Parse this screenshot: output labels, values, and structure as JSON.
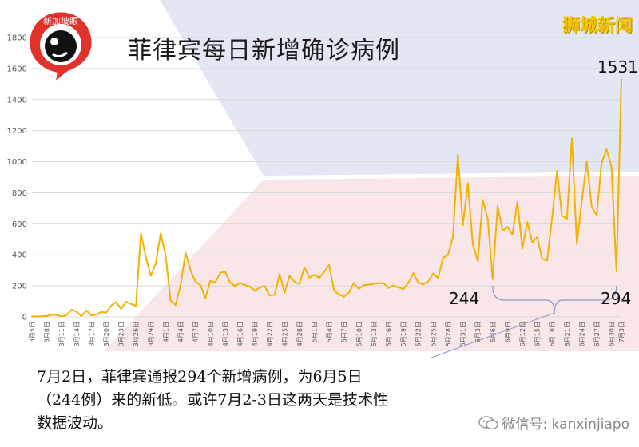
{
  "header": {
    "title": "菲律宾每日新增确诊病例",
    "brand": "狮城新闻",
    "logo_text": "新加坡眼"
  },
  "annotations": {
    "peak_label": "1531",
    "low_label": "244",
    "latest_label": "294"
  },
  "caption": {
    "line1": "7月2日，菲律宾通报294个新增病例，为6月5日",
    "line2": "（244例）来的新低。或许7月2-3日这两天是技术性",
    "line3": "数据波动。"
  },
  "footer": {
    "wechat_label": "微信号: kanxinjiapo"
  },
  "colors": {
    "series": "#f2b300",
    "grid": "#d9d9d9",
    "brace": "#8899cc",
    "brand": "#f5c400",
    "logo_red": "#e0312b"
  },
  "chart_data": {
    "type": "line",
    "title": "菲律宾每日新增确诊病例",
    "xlabel": "",
    "ylabel": "",
    "ylim": [
      0,
      1800
    ],
    "yticks": [
      0,
      200,
      400,
      600,
      800,
      1000,
      1200,
      1400,
      1600,
      1800
    ],
    "grid": true,
    "legend": "none",
    "x_tick_labels": [
      "3月5日",
      "3月8日",
      "3月11日",
      "3月14日",
      "3月17日",
      "3月20日",
      "3月23日",
      "3月26日",
      "3月29日",
      "4月1日",
      "4月4日",
      "4月7日",
      "4月10日",
      "4月13日",
      "4月16日",
      "4月19日",
      "4月22日",
      "4月25日",
      "4月28日",
      "5月1日",
      "5月4日",
      "5月7日",
      "5月10日",
      "5月13日",
      "5月16日",
      "5月19日",
      "5月22日",
      "5月25日",
      "5月28日",
      "5月31日",
      "6月3日",
      "6月6日",
      "6月9日",
      "6月12日",
      "6月15日",
      "6月18日",
      "6月21日",
      "6月24日",
      "6月27日",
      "6月30日",
      "7月3日"
    ],
    "start_date": "3月5日",
    "end_date": "7月3日",
    "series": [
      {
        "values": [
          3,
          2,
          4,
          6,
          14,
          13,
          2,
          13,
          46,
          33,
          5,
          40,
          10,
          15,
          32,
          28,
          73,
          95,
          52,
          97,
          84,
          71,
          538,
          385,
          266,
          343,
          538,
          396,
          106,
          76,
          206,
          414,
          300,
          227,
          206,
          119,
          233,
          221,
          284,
          291,
          220,
          200,
          218,
          205,
          196,
          168,
          190,
          199,
          138,
          142,
          276,
          155,
          265,
          227,
          211,
          320,
          254,
          272,
          252,
          289,
          334,
          169,
          145,
          130,
          157,
          218,
          180,
          205,
          208,
          213,
          218,
          217,
          186,
          203,
          190,
          179,
          220,
          282,
          221,
          210,
          229,
          280,
          250,
          380,
          400,
          515,
          1046,
          590,
          862,
          470,
          359,
          754,
          634,
          244,
          714,
          555,
          579,
          530,
          741,
          440,
          610,
          480,
          515,
          373,
          364,
          636,
          940,
          653,
          630,
          1150,
          470,
          747,
          1000,
          710,
          653,
          990,
          1080,
          965,
          294,
          1531
        ]
      }
    ]
  }
}
